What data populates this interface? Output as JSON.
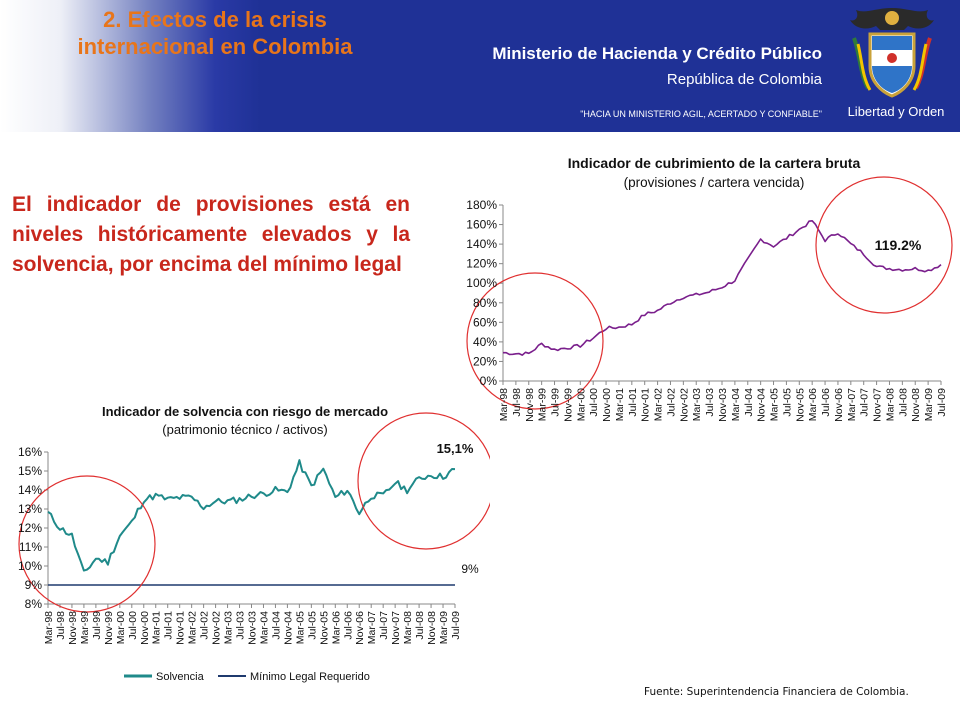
{
  "header": {
    "slide_title_1": "2. Efectos de la crisis",
    "slide_title_2": "internacional en Colombia",
    "ministry": "Ministerio de Hacienda y Crédito Público",
    "republic": "República de Colombia",
    "slogan": "\"HACIA UN MINISTERIO AGIL, ACERTADO Y CONFIABLE\"",
    "motto": "Libertad y Orden",
    "emblem_icon": "coat-of-arms-icon"
  },
  "body_text": "El indicador de provisiones está en niveles históricamente elevados y la solvencia, por encima del mínimo legal",
  "source": "Fuente: Superintendencia Financiera de Colombia.",
  "colors": {
    "header_blue": "#1f3196",
    "title_orange": "#e8751a",
    "body_red": "#c8271c",
    "coverage_line": "#7a1f8c",
    "solvency_line": "#1f8a8a",
    "minimum_line": "#1f3a6e",
    "highlight_circle": "#e03030"
  },
  "chart_data": [
    {
      "type": "line",
      "title": "Indicador de cubrimiento de la cartera bruta",
      "subtitle": "(provisiones / cartera vencida)",
      "ylim": [
        0,
        180
      ],
      "y_ticks": [
        "0%",
        "20%",
        "40%",
        "60%",
        "80%",
        "100%",
        "120%",
        "140%",
        "160%",
        "180%"
      ],
      "x_labels": [
        "Mar-98",
        "Jul-98",
        "Nov-98",
        "Mar-99",
        "Jul-99",
        "Nov-99",
        "Mar-00",
        "Jul-00",
        "Nov-00",
        "Mar-01",
        "Jul-01",
        "Nov-01",
        "Mar-02",
        "Jul-02",
        "Nov-02",
        "Mar-03",
        "Jul-03",
        "Nov-03",
        "Mar-04",
        "Jul-04",
        "Nov-04",
        "Mar-05",
        "Jul-05",
        "Nov-05",
        "Mar-06",
        "Jul-06",
        "Nov-06",
        "Mar-07",
        "Jul-07",
        "Nov-07",
        "Mar-08",
        "Jul-08",
        "Nov-08",
        "Mar-09",
        "Jul-09"
      ],
      "annotation": "119.2%",
      "series": [
        {
          "values": [
            29,
            28,
            28,
            38,
            32,
            34,
            36,
            44,
            54,
            55,
            58,
            68,
            72,
            80,
            86,
            88,
            91,
            96,
            103,
            124,
            145,
            138,
            146,
            155,
            164,
            144,
            152,
            140,
            130,
            117,
            115,
            114,
            115,
            113,
            119
          ]
        }
      ]
    },
    {
      "type": "line",
      "title": "Indicador de solvencia con riesgo de mercado",
      "subtitle": "(patrimonio técnico / activos)",
      "ylim": [
        8,
        16
      ],
      "y_ticks": [
        "8%",
        "9%",
        "10%",
        "11%",
        "12%",
        "13%",
        "14%",
        "15%",
        "16%"
      ],
      "x_labels": [
        "Mar-98",
        "Jul-98",
        "Nov-98",
        "Mar-99",
        "Jul-99",
        "Nov-99",
        "Mar-00",
        "Jul-00",
        "Nov-00",
        "Mar-01",
        "Jul-01",
        "Nov-01",
        "Mar-02",
        "Jul-02",
        "Nov-02",
        "Mar-03",
        "Jul-03",
        "Nov-03",
        "Mar-04",
        "Jul-04",
        "Nov-04",
        "Mar-05",
        "Jul-05",
        "Nov-05",
        "Mar-06",
        "Jul-06",
        "Nov-06",
        "Mar-07",
        "Jul-07",
        "Nov-07",
        "Mar-08",
        "Jul-08",
        "Nov-08",
        "Mar-09",
        "Jul-09"
      ],
      "annotation_latest": "15,1%",
      "annotation_minimum": "9%",
      "series": [
        {
          "name": "Solvencia",
          "values": [
            12.8,
            12.0,
            11.6,
            9.6,
            10.4,
            10.2,
            11.6,
            12.3,
            13.5,
            13.7,
            13.5,
            13.6,
            13.6,
            13.1,
            13.4,
            13.4,
            13.5,
            13.7,
            13.8,
            14.0,
            13.9,
            15.4,
            14.2,
            15.1,
            13.6,
            14.0,
            12.8,
            13.7,
            13.7,
            14.4,
            14.0,
            14.6,
            14.8,
            14.7,
            15.1
          ]
        },
        {
          "name": "Mínimo Legal Requerido",
          "values": [
            9,
            9,
            9,
            9,
            9,
            9,
            9,
            9,
            9,
            9,
            9,
            9,
            9,
            9,
            9,
            9,
            9,
            9,
            9,
            9,
            9,
            9,
            9,
            9,
            9,
            9,
            9,
            9,
            9,
            9,
            9,
            9,
            9,
            9,
            9
          ]
        }
      ]
    }
  ]
}
